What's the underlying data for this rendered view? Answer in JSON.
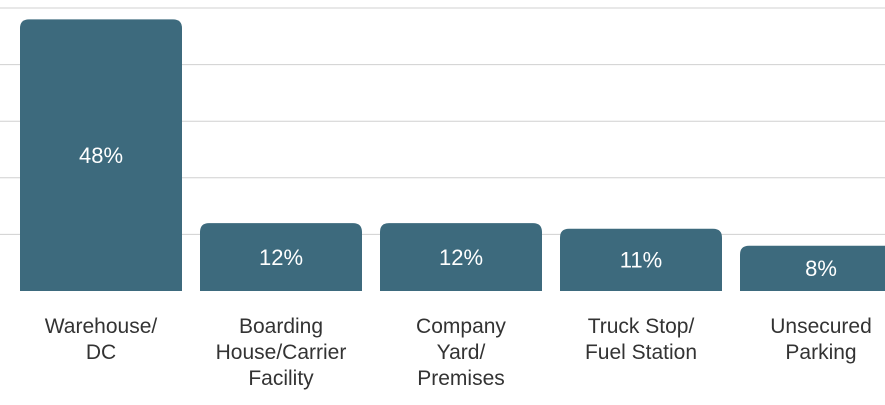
{
  "chart_data": {
    "type": "bar",
    "categories": [
      "Warehouse/\nDC",
      "Boarding\nHouse/Carrier\nFacility",
      "Company\nYard/\nPremises",
      "Truck Stop/\nFuel Station",
      "Unsecured\nParking"
    ],
    "values": [
      48,
      12,
      12,
      11,
      8
    ],
    "value_labels": [
      "48%",
      "12%",
      "12%",
      "11%",
      "8%"
    ],
    "color": "#3d6a7d",
    "ylim": [
      0,
      50
    ],
    "yticks": [
      10,
      20,
      30,
      40,
      50
    ],
    "grid": true
  }
}
